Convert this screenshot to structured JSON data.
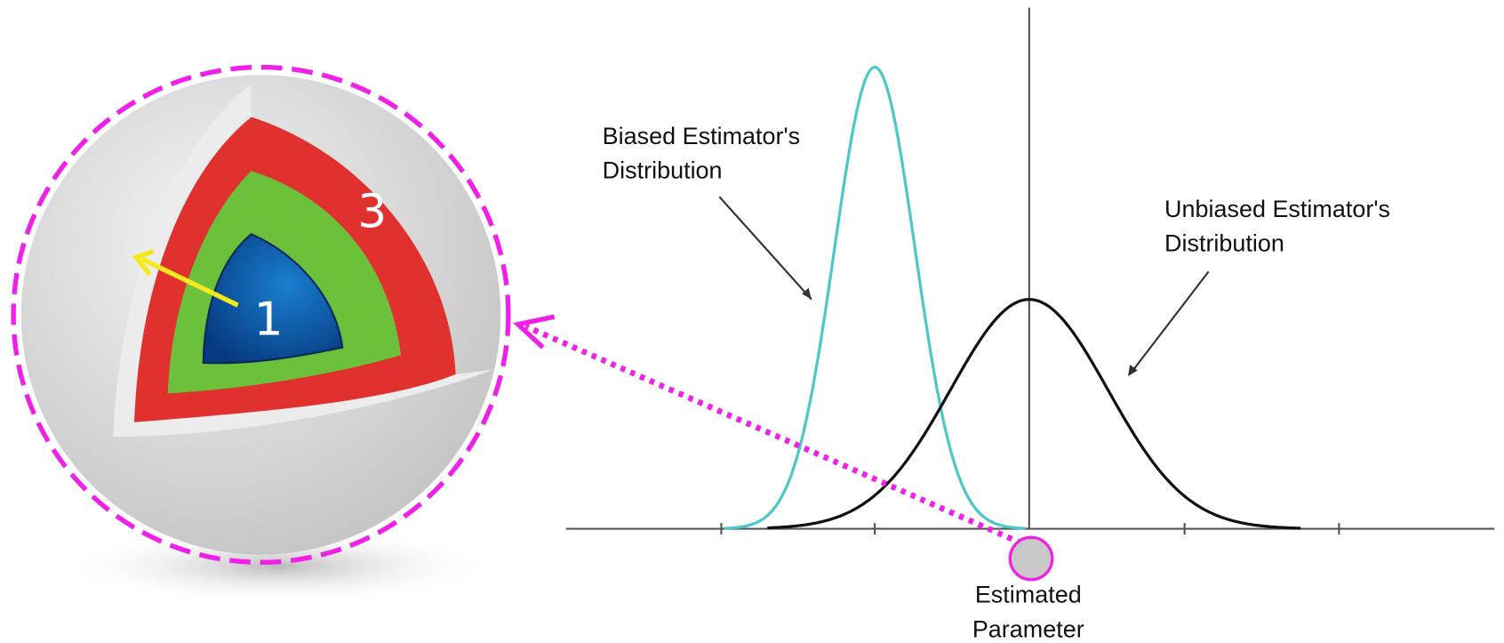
{
  "sphere": {
    "layers": [
      {
        "label": "1"
      },
      {
        "label": "3"
      }
    ]
  },
  "plot": {
    "annotations": [
      {
        "lines": [
          "Biased Estimator's",
          "Distribution"
        ]
      },
      {
        "lines": [
          "Unbiased Estimator's",
          "Distribution"
        ]
      },
      {
        "lines": [
          "Estimated",
          "Parameter"
        ]
      }
    ]
  }
}
